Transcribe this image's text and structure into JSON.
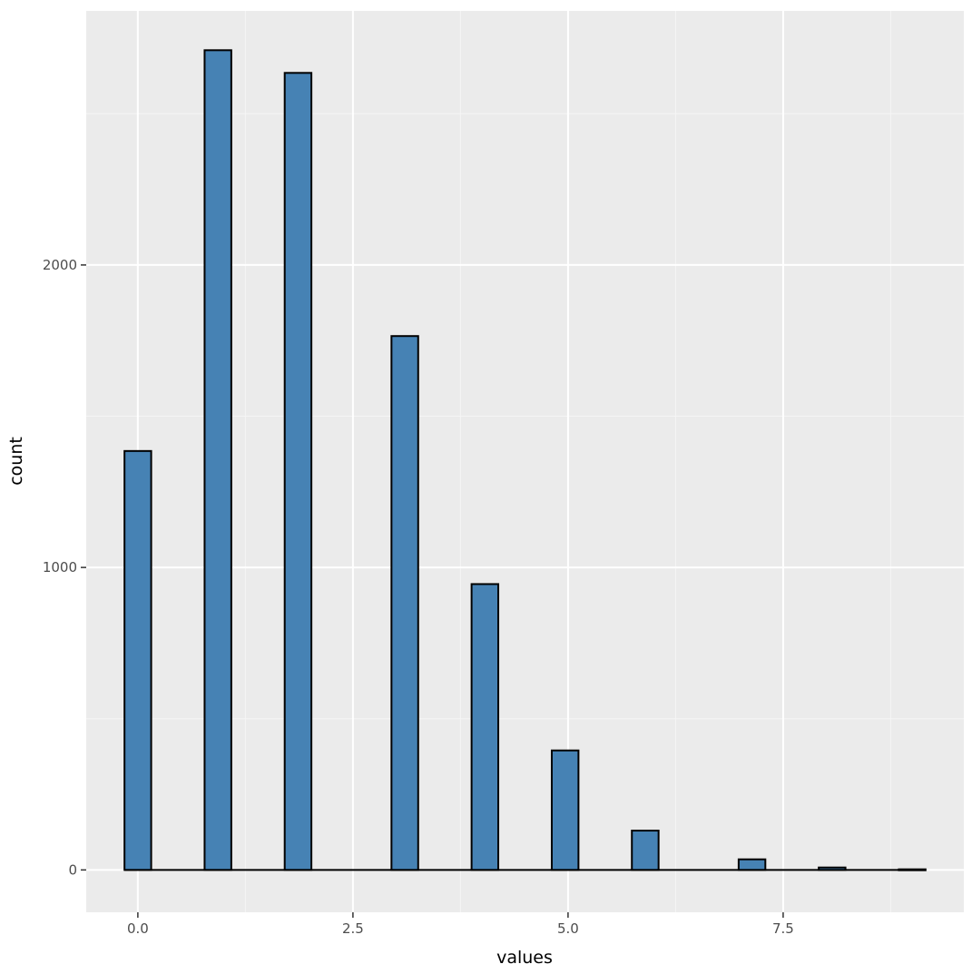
{
  "colors": {
    "panel_background": "#ebebeb",
    "grid_major": "#ffffff",
    "grid_minor": "#f5f5f5",
    "bar_fill": "#4682b4",
    "bar_outline": "#000000",
    "tick_label": "#4d4d4d",
    "axis_title": "#000000"
  },
  "chart_data": {
    "type": "bar",
    "title": "",
    "xlabel": "values",
    "ylabel": "count",
    "xlim": [
      -0.6,
      9.6
    ],
    "ylim": [
      -140,
      2840
    ],
    "x_ticks": [
      0.0,
      2.5,
      5.0,
      7.5
    ],
    "x_tick_labels": [
      "0.0",
      "2.5",
      "5.0",
      "7.5"
    ],
    "y_ticks": [
      0,
      1000,
      2000
    ],
    "y_tick_labels": [
      "0",
      "1000",
      "2000"
    ],
    "bin_width": 0.3103,
    "bins": [
      {
        "x": 0.0,
        "count": 1385
      },
      {
        "x": 0.931,
        "count": 2710
      },
      {
        "x": 1.862,
        "count": 2635
      },
      {
        "x": 3.103,
        "count": 1765
      },
      {
        "x": 4.034,
        "count": 945
      },
      {
        "x": 4.966,
        "count": 395
      },
      {
        "x": 5.897,
        "count": 130
      },
      {
        "x": 7.138,
        "count": 35
      },
      {
        "x": 8.069,
        "count": 8
      },
      {
        "x": 9.0,
        "count": 2
      }
    ],
    "grid": true,
    "legend": "none"
  }
}
